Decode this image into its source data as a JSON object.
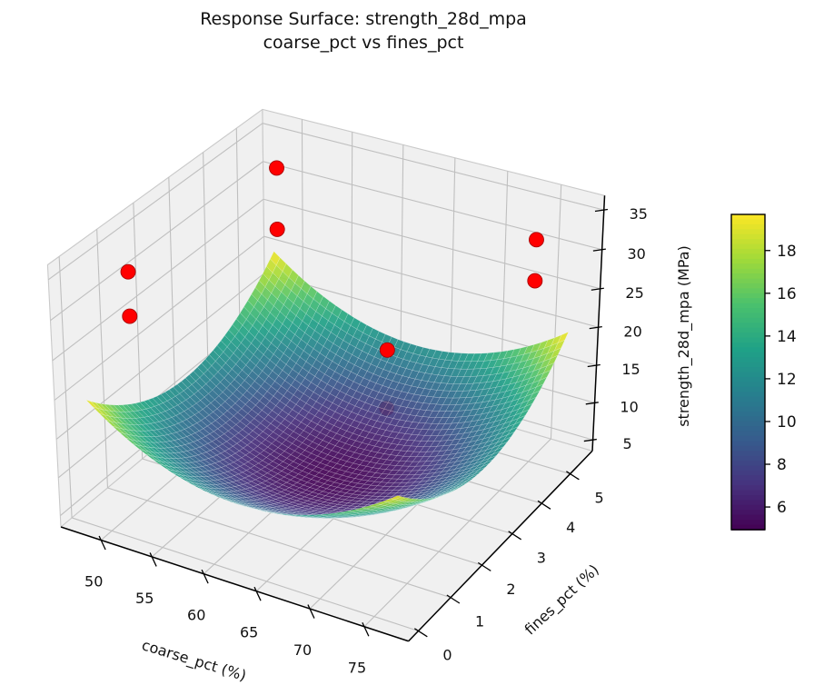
{
  "title": {
    "line1": "Response Surface: strength_28d_mpa",
    "line2": "coarse_pct vs fines_pct"
  },
  "chart_data": {
    "type": "surface_3d",
    "title": "Response Surface: strength_28d_mpa\ncoarse_pct vs fines_pct",
    "xlabel": "coarse_pct (%)",
    "ylabel": "fines_pct (%)",
    "zlabel": "strength_28d_mpa (MPa)",
    "xlim": [
      46,
      79
    ],
    "ylim": [
      -0.3,
      5.8
    ],
    "zlim": [
      3.5,
      36.8
    ],
    "xticks": [
      50,
      55,
      60,
      65,
      70,
      75
    ],
    "yticks": [
      0,
      1,
      2,
      3,
      4,
      5
    ],
    "zticks": [
      5,
      10,
      15,
      20,
      25,
      30,
      35
    ],
    "view": {
      "elev": 30,
      "azim": -60,
      "projection": "perspective"
    },
    "colormap": "viridis",
    "color_range": [
      4.94,
      19.69
    ],
    "surface": {
      "x_range": [
        48,
        77
      ],
      "y_range": [
        0,
        5.5
      ],
      "grid_n": 46,
      "model": "z = 5 + 0.035*(coarse-62.5)^2 + 0.97*(fines-2.75)^2",
      "coeffs": {
        "z0": 5,
        "x0": 62.5,
        "ax": 0.035,
        "y0": 2.75,
        "ay": 0.97
      },
      "alpha": 0.92
    },
    "scatter": {
      "color": "#ff0000",
      "edge_color": "#a80000",
      "marker_radius": 8,
      "points": [
        {
          "x": 50,
          "y": 5,
          "z": 33,
          "occluded": false
        },
        {
          "x": 50,
          "y": 5,
          "z": 25,
          "occluded": false
        },
        {
          "x": 50,
          "y": 0.7,
          "z": 34,
          "occluded": false
        },
        {
          "x": 50,
          "y": 0.7,
          "z": 28.5,
          "occluded": false
        },
        {
          "x": 75,
          "y": 5,
          "z": 32.5,
          "occluded": false
        },
        {
          "x": 75,
          "y": 5,
          "z": 27.3,
          "occluded": false
        },
        {
          "x": 67,
          "y": 3,
          "z": 22.5,
          "occluded": false
        },
        {
          "x": 67,
          "y": 3,
          "z": 15,
          "occluded": true
        }
      ]
    },
    "colorbar": {
      "ticks": [
        6,
        8,
        10,
        12,
        14,
        16,
        18
      ]
    },
    "style": {
      "pane_color": "#f0f0f0",
      "grid_color": "#bfbfbf",
      "pane_edge_color": "#c9c9c9",
      "axis_color": "#000000",
      "mesh_line_color": "#ffffff",
      "text_color": "#111111"
    }
  }
}
